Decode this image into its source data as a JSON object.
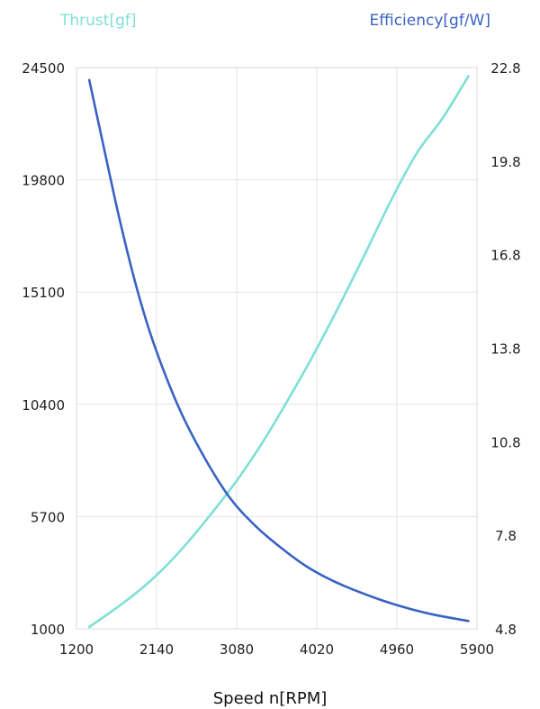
{
  "chart_data": {
    "type": "line",
    "xlabel": "Speed n[RPM]",
    "xlim": [
      1200,
      5900
    ],
    "x_ticks": [
      "1200",
      "2140",
      "3080",
      "4020",
      "4960",
      "5900"
    ],
    "y_left": {
      "label": "Thrust[gf]",
      "color": "#7de0d6",
      "lim": [
        1000,
        24500
      ],
      "ticks": [
        "1000",
        "5700",
        "10400",
        "15100",
        "19800",
        "24500"
      ]
    },
    "y_right": {
      "label": "Efficiency[gf/W]",
      "color": "#3a62c4",
      "lim": [
        4.8,
        22.8
      ],
      "ticks": [
        "4.8",
        "7.8",
        "10.8",
        "13.8",
        "16.8",
        "19.8",
        "22.8"
      ]
    },
    "grid": true,
    "series": [
      {
        "axis": "left",
        "color": "#7de0d6",
        "x": [
          1350,
          1600,
          1900,
          2200,
          2500,
          2800,
          3100,
          3400,
          3700,
          4000,
          4300,
          4600,
          4900,
          5200,
          5500,
          5800
        ],
        "y": [
          1080,
          1700,
          2500,
          3450,
          4600,
          5900,
          7300,
          8900,
          10700,
          12600,
          14650,
          16800,
          19000,
          20950,
          22400,
          24150
        ]
      },
      {
        "axis": "right",
        "color": "#3a62c4",
        "x": [
          1350,
          1500,
          1700,
          1900,
          2100,
          2400,
          2700,
          3000,
          3300,
          3600,
          3900,
          4200,
          4500,
          4800,
          5100,
          5400,
          5800
        ],
        "y": [
          22.4,
          20.5,
          18.0,
          15.8,
          14.0,
          11.9,
          10.3,
          9.0,
          8.1,
          7.4,
          6.8,
          6.35,
          6.0,
          5.7,
          5.45,
          5.25,
          5.05
        ]
      }
    ]
  }
}
